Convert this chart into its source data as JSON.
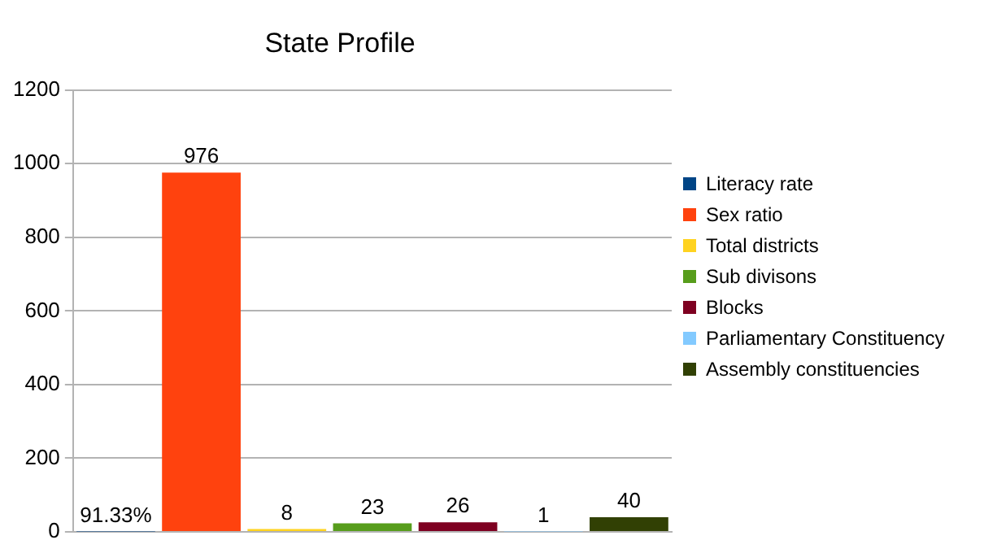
{
  "chart_data": {
    "type": "bar",
    "title": "State Profile",
    "categories": [
      null
    ],
    "series": [
      {
        "name": "Literacy rate",
        "color": "#004586",
        "values": [
          0.9133
        ],
        "value_labels": [
          "91.33%"
        ]
      },
      {
        "name": "Sex ratio",
        "color": "#ff420e",
        "values": [
          976
        ],
        "value_labels": [
          "976"
        ]
      },
      {
        "name": "Total districts",
        "color": "#ffd320",
        "values": [
          8
        ],
        "value_labels": [
          "8"
        ]
      },
      {
        "name": "Sub divisons",
        "color": "#579d1c",
        "values": [
          23
        ],
        "value_labels": [
          "23"
        ]
      },
      {
        "name": "Blocks",
        "color": "#7e0021",
        "values": [
          26
        ],
        "value_labels": [
          "26"
        ]
      },
      {
        "name": "Parliamentary Constituency",
        "color": "#83caff",
        "values": [
          1
        ],
        "value_labels": [
          "1"
        ]
      },
      {
        "name": "Assembly constituencies",
        "color": "#314004",
        "values": [
          40
        ],
        "value_labels": [
          "40"
        ]
      }
    ],
    "ylim": [
      0,
      1200
    ],
    "yticks": [
      0,
      200,
      400,
      600,
      800,
      1000,
      1200
    ],
    "grid": "y",
    "legend": "right"
  }
}
